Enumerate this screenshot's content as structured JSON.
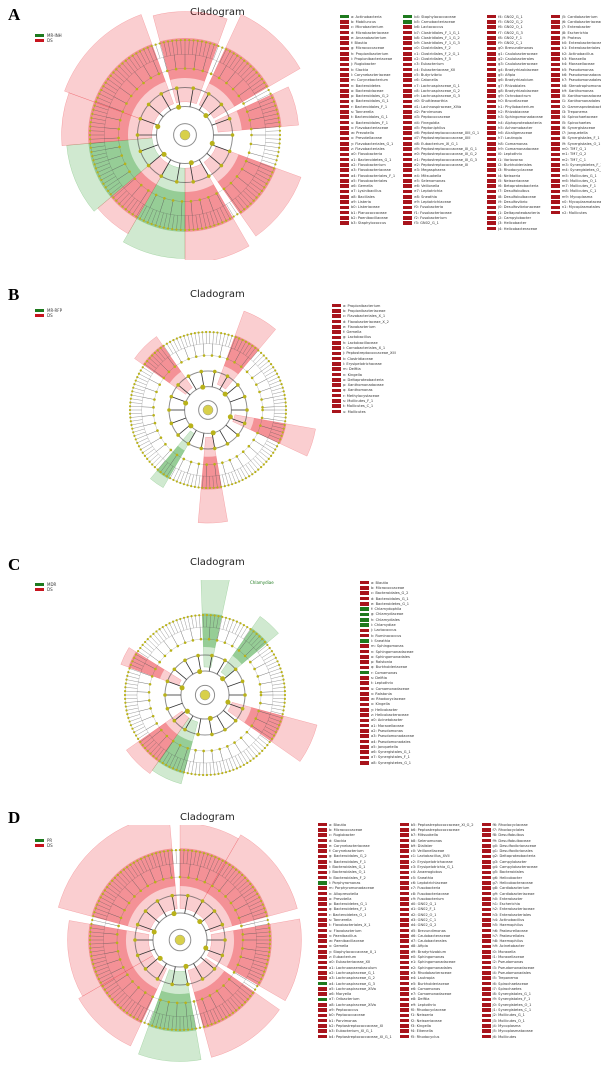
{
  "colors": {
    "red": "#c8141e",
    "green": "#1e7a1e",
    "node": "#b9b21a"
  },
  "panels": [
    {
      "label": "A",
      "title": "Cladogram",
      "groups": [
        {
          "name": "MR-INH",
          "color": "green"
        },
        {
          "name": "DS",
          "color": "red"
        }
      ],
      "legend": [
        [
          "a: Actinobacteria",
          "b: Mobiluncus",
          "c: Microbacterium",
          "d: Microbacteriaceae",
          "e: Arcanobacterium",
          "f: Blautia",
          "g: Micrococcaceae",
          "h: Propionibacterium",
          "i: Propionibacteriaceae",
          "j: Rugiobacter",
          "k: Slackia",
          "l: Corynebacteriaceae",
          "m: Corynebacterium",
          "n: Bacteroidetes",
          "o: Bacteroidaceae",
          "p: Bacteroidales_G_2",
          "q: Bacteroidales_G_1",
          "r: Bacteroidales_F_1",
          "s: Tannerella",
          "t: Bacteroidales_G_1",
          "u: Bacteroidales_F_1",
          "v: Flavobacteriaceae",
          "w: Prevotella",
          "x: Prevotellaceae",
          "y: Flavobacteriales_G_1",
          "z: Flavobacteriales",
          "a0: Flavobacteria",
          "a1: Bacteroidetes_G_1",
          "a2: Flavobacterium",
          "a3: Flavobacteriaceae",
          "a4: Flavobacteriales_F_1",
          "a5: Flavobacteriales",
          "a6: Gemella",
          "a7: Lysinibacillus",
          "a8: Bacillales",
          "a9: Listeria",
          "b0: Listeriaceae",
          "b1: Planococcaceae",
          "b2: Paenibacillaceae",
          "b3: Staphylococcus"
        ],
        [
          "b4: Staphylococcaceae",
          "b5: Carnobacteriaceae",
          "b6: Lactococcus",
          "b7: Clostridiales_F_1_G_1",
          "b8: Clostridiales_F_1_G_2",
          "b9: Clostridiales_F_1_G_3",
          "c0: Clostridiales_F_2",
          "c1: Clostridiales_F_2_G_1",
          "c2: Clostridiales_F_3",
          "c3: Eubacterium",
          "c4: Eubacteriaceae_XII",
          "c5: Butyrivibrio",
          "c6: Catonella",
          "c7: Lachnospiraceae_G_1",
          "c8: Lachnospiraceae_G_2",
          "c9: Lachnospiraceae_G_3",
          "d0: Shuttleworthia",
          "d1: Lachnospiraceae_XIVa",
          "d2: Parvimonas",
          "d3: Peptococcaceae",
          "d4: Finegoldia",
          "d5: Peptoniphilus",
          "d6: Peptostreptococcaceae_XIII_G_1",
          "d7: Peptostreptococcaceae_XIII",
          "d8: Eubacterium_XI_G_1",
          "d9: Peptostreptococcaceae_XI_G_1",
          "e0: Peptostreptococcaceae_XI_G_2",
          "e1: Peptostreptococcaceae_XI_G_3",
          "e2: Peptostreptococcaceae_XI",
          "e3: Megasphaera",
          "e4: Mitsuokella",
          "e5: Selenomonas",
          "e6: Veillonella",
          "e7: Leptotrichia",
          "e8: Sneathia",
          "e9: Leptotrichiaceae",
          "f0: Fusobacteria",
          "f1: Fusobacteriaceae",
          "f2: Fusobacterium",
          "f3: GN02_G_1"
        ],
        [
          "f4: GN02_G_1",
          "f5: GN02_G_2",
          "f6: GN02_O_1",
          "f7: GN02_G_3",
          "f8: GN02_F_1",
          "f9: GN02_C_1",
          "g0: Brevundimonas",
          "g1: Caulobacteraceae",
          "g2: Caulobacterales",
          "g3: Caulobacteraceae",
          "g4: Bradyrhizobiaceae",
          "g5: Afipia",
          "g6: Bradyrhizobium",
          "g7: Rhizobiales",
          "g8: Bradyrhizobiaceae",
          "g9: Ochrobactrum",
          "h0: Brucellaceae",
          "h1: Phyllobacterium",
          "h2: Rhizobiaceae",
          "h3: Sphingomonadaceae",
          "h4: Alphaproteobacteria",
          "h5: Achromobacter",
          "h6: Alcaligenaceae",
          "h7: Lautropia",
          "h8: Comamonas",
          "h9: Comamonadaceae",
          "i0: Leptothrix",
          "i1: Variovorax",
          "i2: Burkholderiales",
          "i3: Rhodocyclaceae",
          "i4: Neisseria",
          "i5: Neisseriaceae",
          "i6: Betaproteobacteria",
          "i7: Desulfobulbus",
          "i8: Desulfobulbaceae",
          "i9: Desulfovibrio",
          "j0: Desulfovibrionaceae",
          "j1: Deltaproteobacteria",
          "j2: Campylobacter",
          "j3: Helicobacter",
          "j4: Helicobacteraceae"
        ],
        [
          "j5: Cardiobacterium",
          "j6: Cardiobacteriaceae",
          "j7: Enterobacter",
          "j8: Escherichia",
          "j9: Proteus",
          "k0: Enterobacteriaceae",
          "k1: Enterobacteriales",
          "k2: Actinobacillus",
          "k3: Moraxella",
          "k4: Moraxellaceae",
          "k5: Pseudomonas",
          "k6: Pseudomonadaceae",
          "k7: Pseudomonadales",
          "k8: Stenotrophomonas",
          "k9: Xanthomonas",
          "l0: Xanthomonadaceae",
          "l1: Xanthomonadales",
          "l2: Gammaproteobacteria",
          "l3: Treponema",
          "l4: Spirochaetaceae",
          "l5: Spirochaetes",
          "l6: Synergistaceae",
          "l7: Jonquetella",
          "l8: Synergistales_F_1",
          "l9: Synergistales_O_1",
          "m0: TM7_G_1",
          "m1: TM7_G_2",
          "m2: TM7_C_1",
          "m3: Synergistetes_F_1",
          "m4: Synergistetes_O_1",
          "m5: Mollicutes_G_1",
          "m6: Mollicutes_O_1",
          "m7: Mollicutes_F_1",
          "m8: Mollicutes_C_1",
          "m9: Mycoplasma",
          "n0: Mycoplasmataceae",
          "n1: Mycoplasmatales",
          "n2: Mollicutes"
        ]
      ]
    },
    {
      "label": "B",
      "title": "Cladogram",
      "groups": [
        {
          "name": "MR-RFP",
          "color": "green"
        },
        {
          "name": "DS",
          "color": "red"
        }
      ],
      "legend": [
        [
          "a: Propionibacterium",
          "b: Propionibacteriaceae",
          "c: Flavobacteriales_X_1",
          "d: Flavobacteriaceae_X_2",
          "e: Flavobacterium",
          "f: Gemella",
          "g: Lactobacillus",
          "h: Lactobacillaceae",
          "i: Carnobacteriales_X_1",
          "j: Peptostreptococcaceae_XIII",
          "k: Clostridiaceae",
          "l: Erysipelotrichaceae",
          "m: Delftia",
          "n: Kingella",
          "o: Deltaproteobacteria",
          "p: Xanthomonadaceae",
          "q: Xanthomonas",
          "r: Methylocystaceae",
          "s: Mollicutes_F_1",
          "t: Mollicutes_C_1",
          "u: Mollicutes"
        ]
      ]
    },
    {
      "label": "C",
      "title": "Cladogram",
      "groups": [
        {
          "name": "MDR",
          "color": "green"
        },
        {
          "name": "DS",
          "color": "red"
        }
      ],
      "annotation": "Chlamydiae",
      "legend": [
        [
          "a: Blautia",
          "b: Micrococcaceae",
          "c: Bacteroidales_G_2",
          "d: Bacteroidales_G_1",
          "e: Bacteroidetes_G_1",
          "f: Chlamydophila",
          "g: Chlamydiaceae",
          "h: Chlamydiales",
          "i: Chlamydiae",
          "j: Lactococcus",
          "k: Ruminococcus",
          "l: Sneathia",
          "m: Sphingomonas",
          "n: Sphingomonadaceae",
          "o: Sphingomonadales",
          "p: Ralstonia",
          "q: Burkholderiaceae",
          "r: Comamonas",
          "s: Delftia",
          "t: Leptothrix",
          "u: Comamonadaceae",
          "v: Ralstonia",
          "w: Rhodocyclaceae",
          "x: Kingella",
          "y: Helicobacter",
          "z: Helicobacteraceae",
          "a0: Acinetobacter",
          "a1: Moraxellaceae",
          "a2: Pseudomonas",
          "a3: Pseudomonadaceae",
          "a4: Pseudomonadales",
          "a5: Jonquetella",
          "a6: Synergistales_G_1",
          "a7: Synergistales_F_1",
          "a8: Synergistetes_G_1"
        ]
      ]
    },
    {
      "label": "D",
      "title": "Cladogram",
      "groups": [
        {
          "name": "PR",
          "color": "green"
        },
        {
          "name": "DS",
          "color": "red"
        }
      ],
      "legend": [
        [
          "a: Blautia",
          "b: Micrococcaceae",
          "c: Rugiobacter",
          "d: Slackia",
          "e: Corynebacteriaceae",
          "f: Corynebacterium",
          "g: Bacteroidales_G_2",
          "h: Bacteroidales_F_1",
          "i: Bacteroidales_G_1",
          "j: Bacteroidales_O_1",
          "k: Bacteroidales_F_2",
          "l: Porphyromonas",
          "m: Porphyromonadaceae",
          "n: Alloprevotella",
          "o: Prevotella",
          "p: Bacteroidetes_G_1",
          "q: Bacteroidetes_F_1",
          "r: Bacteroidetes_O_1",
          "s: Tannerella",
          "t: Flavobacteriales_X_1",
          "u: Flavobacterium",
          "v: Paenibacillus",
          "w: Paenibacillaceae",
          "x: Gemella",
          "y: Staphylococcaceae_X_1",
          "z: Eubacterium",
          "a0: Eubacteriaceae_XII",
          "a1: Lachnoanaerobaculum",
          "a2: Lachnospiraceae_G_1",
          "a3: Lachnospiraceae_G_2",
          "a4: Lachnospiraceae_G_3",
          "a5: Lachnospiraceae_XIVa",
          "a6: Moryella",
          "a7: Oribacterium",
          "a8: Lachnospiraceae_XIVa",
          "a9: Peptococcus",
          "b0: Peptococcaceae",
          "b1: Parvimonas",
          "b2: Peptostreptococcaceae_XI",
          "b3: Eubacterium_XI_G_1",
          "b4: Peptostreptococcaceae_XI_G_1"
        ],
        [
          "b5: Peptostreptococcaceae_XI_G_2",
          "b6: Peptostreptococcaceae",
          "b7: Mitsuokella",
          "b8: Selenomonas",
          "b9: Dialister",
          "c0: Veillonellaceae",
          "c1: Lactobacillus_XVII",
          "c2: Erysipelotrichaceae",
          "c3: Erysipelotrichia_G_1",
          "c4: Anaeroglobus",
          "c5: Sneathia",
          "c6: Leptotrichiaceae",
          "c7: Fusobacteria",
          "c8: Fusobacteriaceae",
          "c9: Fusobacterium",
          "d0: GN02_G_1",
          "d1: GN02_F_1",
          "d2: GN02_O_1",
          "d3: GN02_C_1",
          "d4: GN02_G_2",
          "d5: Brevundimonas",
          "d6: Caulobacteraceae",
          "d7: Caulobacterales",
          "d8: Afipia",
          "d9: Bradyrhizobium",
          "e0: Sphingomonas",
          "e1: Sphingomonadaceae",
          "e2: Sphingomonadales",
          "e3: Rhodobacteraceae",
          "e4: Lautropia",
          "e5: Burkholderiaceae",
          "e6: Comamonas",
          "e7: Comamonadaceae",
          "e8: Delftia",
          "e9: Leptothrix",
          "f0: Rhodocyclaceae",
          "f1: Neisseria",
          "f2: Neisseriaceae",
          "f3: Kingella",
          "f4: Eikenella",
          "f5: Rhodocyclus"
        ],
        [
          "f6: Rhodocyclaceae",
          "f7: Rhodocyclales",
          "f8: Desulfobulbus",
          "f9: Desulfobulbaceae",
          "g0: Desulfovibrionaceae",
          "g1: Desulfovibrionales",
          "g2: Deltaproteobacteria",
          "g3: Campylobacter",
          "g4: Campylobacteraceae",
          "g5: Bacteroidales",
          "g6: Helicobacter",
          "g7: Helicobacteraceae",
          "g8: Cardiobacterium",
          "g9: Cardiobacteriaceae",
          "h0: Enterobacter",
          "h1: Escherichia",
          "h2: Enterobacteriaceae",
          "h3: Enterobacteriales",
          "h4: Actinobacillus",
          "h5: Haemophilus",
          "h6: Pasteurellaceae",
          "h7: Pasteurellales",
          "h8: Haemophilus",
          "h9: Acinetobacter",
          "i0: Moraxella",
          "i1: Moraxellaceae",
          "i2: Pseudomonas",
          "i3: Pseudomonadaceae",
          "i4: Pseudomonadales",
          "i5: Treponema",
          "i6: Spirochaetaceae",
          "i7: Spirochaetes",
          "i8: Synergistales_G_1",
          "i9: Synergistales_F_1",
          "j0: Synergistetes_O_1",
          "j1: Synergistetes_C_1",
          "j2: Mollicutes_G_1",
          "j3: Mollicutes_O_1",
          "j4: Mycoplasma",
          "j5: Mycoplasmataceae",
          "j6: Mollicutes"
        ]
      ]
    }
  ]
}
